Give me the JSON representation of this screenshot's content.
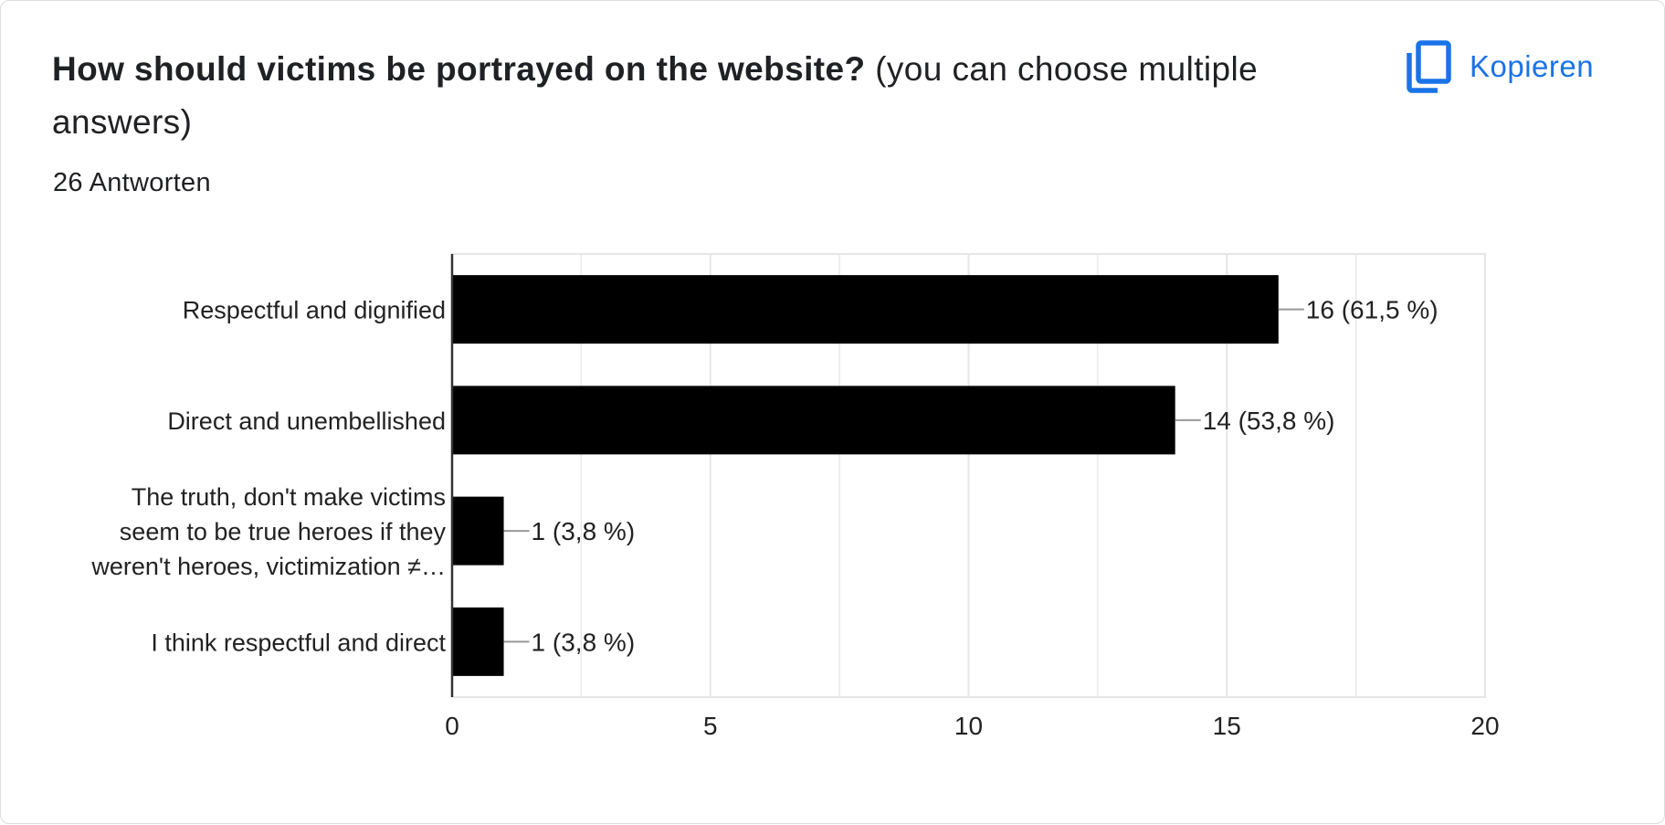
{
  "question": {
    "title": "How should victims be portrayed on the website?",
    "subtitle": "(you can choose multiple answers)"
  },
  "responses_label": "26 Antworten",
  "copy_button": {
    "label": "Kopieren",
    "icon": "copy-icon"
  },
  "colors": {
    "bar": "#000000",
    "accent": "#1a73e8",
    "grid": "#e6e6e6",
    "axis": "#333333"
  },
  "chart_data": {
    "type": "bar",
    "orientation": "horizontal",
    "categories": [
      "Respectful and dignified",
      "Direct and unembellished",
      "The truth, don't make victims seem to be true heroes if they weren't heroes, victimization ≠…",
      "I think respectful and direct"
    ],
    "category_lines": [
      [
        "Respectful and dignified"
      ],
      [
        "Direct and unembellished"
      ],
      [
        "The truth, don't make victims",
        "seem to be true heroes if they",
        "weren't heroes, victimization ≠…"
      ],
      [
        "I think respectful and direct"
      ]
    ],
    "values": [
      16,
      14,
      1,
      1
    ],
    "value_labels": [
      "16 (61,5 %)",
      "14 (53,8 %)",
      "1 (3,8 %)",
      "1 (3,8 %)"
    ],
    "x_ticks": [
      0,
      5,
      10,
      15,
      20
    ],
    "xlim": [
      0,
      20
    ],
    "grid": true,
    "legend": "none"
  }
}
